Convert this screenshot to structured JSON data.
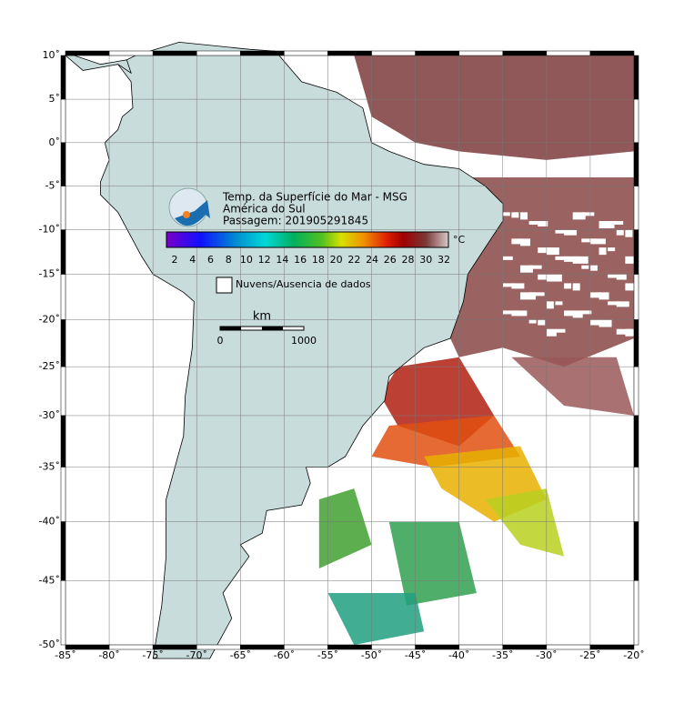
{
  "header": {
    "lines": [
      "Temp. da Superfície do Mar - MSG",
      "América do Sul",
      "Passagem: 201905291845"
    ]
  },
  "colorbar": {
    "ticks": [
      "2",
      "4",
      "6",
      "8",
      "10",
      "12",
      "14",
      "16",
      "18",
      "20",
      "22",
      "24",
      "26",
      "28",
      "30",
      "32"
    ],
    "unit": "°C"
  },
  "legend": {
    "label": "Nuvens/Ausencia de dados"
  },
  "scale_bar": {
    "unit": "km",
    "start": "0",
    "end": "1000"
  },
  "axes": {
    "lon_ticks": [
      {
        "value": -85,
        "label": "-85˚"
      },
      {
        "value": -80,
        "label": "-80˚"
      },
      {
        "value": -75,
        "label": "-75˚"
      },
      {
        "value": -70,
        "label": "-70˚"
      },
      {
        "value": -65,
        "label": "-65˚"
      },
      {
        "value": -60,
        "label": "-60˚"
      },
      {
        "value": -55,
        "label": "-55˚"
      },
      {
        "value": -50,
        "label": "-50˚"
      },
      {
        "value": -45,
        "label": "-45˚"
      },
      {
        "value": -40,
        "label": "-40˚"
      },
      {
        "value": -35,
        "label": "-35˚"
      },
      {
        "value": -30,
        "label": "-30˚"
      },
      {
        "value": -25,
        "label": "-25˚"
      },
      {
        "value": -20,
        "label": "-20˚"
      }
    ],
    "lat_ticks": [
      {
        "value": 10,
        "label": "10˚"
      },
      {
        "value": 5,
        "label": "5˚"
      },
      {
        "value": 0,
        "label": "0˚"
      },
      {
        "value": -5,
        "label": "-5˚"
      },
      {
        "value": -10,
        "label": "-10˚"
      },
      {
        "value": -15,
        "label": "-15˚"
      },
      {
        "value": -20,
        "label": "-20˚"
      },
      {
        "value": -25,
        "label": "-25˚"
      },
      {
        "value": -30,
        "label": "-30˚"
      },
      {
        "value": -35,
        "label": "-35˚"
      },
      {
        "value": -40,
        "label": "-40˚"
      },
      {
        "value": -45,
        "label": "-45˚"
      },
      {
        "value": -50,
        "label": "-50˚"
      }
    ]
  }
}
